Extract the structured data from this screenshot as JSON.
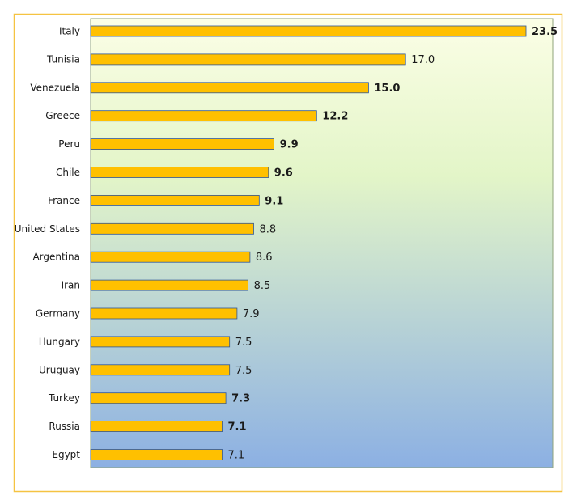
{
  "colors": {
    "bar_fill": "#FFC000",
    "bar_stroke": "#2F5597",
    "outer_border": "#F5C342",
    "plot_border": "#8FA37A",
    "gradient_top": "#FBFEE6",
    "gradient_mid": "#E3F5C8",
    "gradient_bottom": "#8CB0E3"
  },
  "chart_data": {
    "type": "bar",
    "orientation": "horizontal",
    "title": "",
    "xlabel": "",
    "ylabel": "",
    "xlim": [
      0,
      24
    ],
    "grid": false,
    "legend": "none",
    "categories": [
      "Italy",
      "Tunisia",
      "Venezuela",
      "Greece",
      "Peru",
      "Chile",
      "France",
      "United States",
      "Argentina",
      "Iran",
      "Germany",
      "Hungary",
      "Uruguay",
      "Turkey",
      "Russia",
      "Egypt"
    ],
    "values": [
      23.5,
      17.0,
      15.0,
      12.2,
      9.9,
      9.6,
      9.1,
      8.8,
      8.6,
      8.5,
      7.9,
      7.5,
      7.5,
      7.3,
      7.1,
      7.1
    ],
    "value_labels": [
      "23.5",
      "17.0",
      "15.0",
      "12.2",
      "9.9",
      "9.6",
      "9.1",
      "8.8",
      "8.6",
      "8.5",
      "7.9",
      "7.5",
      "7.5",
      "7.3",
      "7.1",
      "7.1"
    ],
    "bold_labels": [
      true,
      false,
      true,
      true,
      true,
      true,
      true,
      false,
      false,
      false,
      false,
      false,
      false,
      true,
      true,
      false
    ]
  }
}
